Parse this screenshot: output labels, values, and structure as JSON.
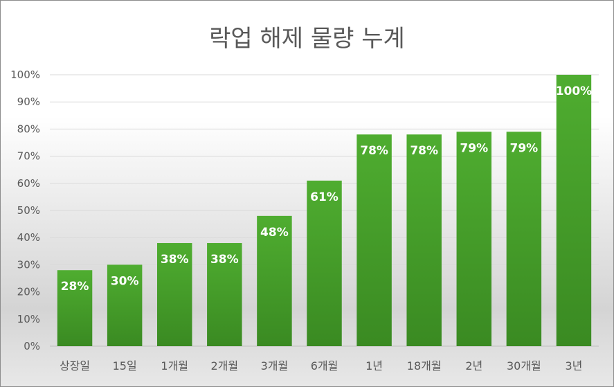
{
  "chart_data": {
    "type": "bar",
    "title": "락업 해제 물량 누계",
    "xlabel": "",
    "ylabel": "",
    "categories": [
      "상장일",
      "15일",
      "1개월",
      "2개월",
      "3개월",
      "6개월",
      "1년",
      "18개월",
      "2년",
      "30개월",
      "3년"
    ],
    "values": [
      28,
      30,
      38,
      38,
      48,
      61,
      78,
      78,
      79,
      79,
      100
    ],
    "data_labels": [
      "28%",
      "30%",
      "38%",
      "38%",
      "48%",
      "61%",
      "78%",
      "78%",
      "79%",
      "79%",
      "100%"
    ],
    "y_ticks": [
      "0%",
      "10%",
      "20%",
      "30%",
      "40%",
      "50%",
      "60%",
      "70%",
      "80%",
      "90%",
      "100%"
    ],
    "ylim": [
      0,
      100
    ],
    "grid": true,
    "legend": "none",
    "bar_color": "#48a02a"
  }
}
